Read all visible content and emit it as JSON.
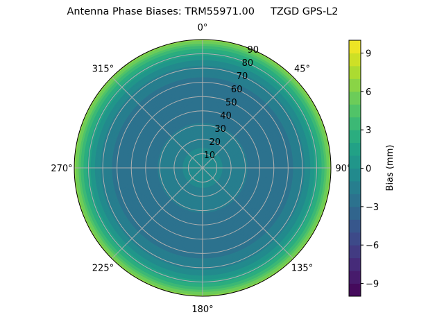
{
  "chart_data": {
    "type": "heatmap",
    "projection": "polar",
    "title": "Antenna Phase Biases: TRM55971.00     TZGD GPS-L2",
    "angle_ticks": [
      "0°",
      "45°",
      "90°",
      "135°",
      "180°",
      "225°",
      "270°",
      "315°"
    ],
    "radial_ticks": [
      "10",
      "20",
      "30",
      "40",
      "50",
      "60",
      "70",
      "80",
      "90"
    ],
    "radial_range": [
      0,
      90
    ],
    "radial_profile": {
      "zenith_deg": [
        0,
        10,
        20,
        30,
        40,
        50,
        60,
        70,
        75,
        80,
        85,
        90
      ],
      "bias_mm": [
        -0.5,
        -0.8,
        -1.3,
        -1.9,
        -2.5,
        -2.8,
        -2.4,
        -1.4,
        -0.2,
        1.5,
        3.5,
        6.5
      ]
    },
    "grid": true,
    "colorbar": {
      "label": "Bias (mm)",
      "range": [
        -10,
        10
      ],
      "levels": 20,
      "ticks": [
        "-9",
        "-6",
        "-3",
        "0",
        "3",
        "6",
        "9"
      ],
      "ticks_display": [
        "−9",
        "−6",
        "−3",
        "0",
        "3",
        "6",
        "9"
      ],
      "colormap": "viridis"
    }
  }
}
